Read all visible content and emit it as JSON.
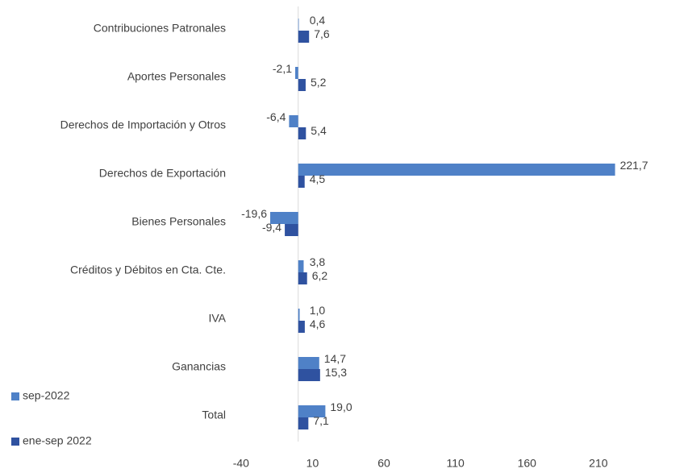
{
  "chart_data": {
    "type": "bar",
    "orientation": "horizontal",
    "categories": [
      "Contribuciones Patronales",
      "Aportes Personales",
      "Derechos de Importación y Otros",
      "Derechos de Exportación",
      "Bienes Personales",
      "Créditos y Débitos en Cta. Cte.",
      "IVA",
      "Ganancias",
      "Total"
    ],
    "series": [
      {
        "name": "sep-2022",
        "color": "#4f81c7",
        "values": [
          0.4,
          -2.1,
          -6.4,
          221.7,
          -19.6,
          3.8,
          1.0,
          14.7,
          19.0
        ],
        "value_labels": [
          "0,4",
          "-2,1",
          "-6,4",
          "221,7",
          "-19,6",
          "3,8",
          "1,0",
          "14,7",
          "19,0"
        ]
      },
      {
        "name": "ene-sep 2022",
        "color": "#2f52a0",
        "values": [
          7.6,
          5.2,
          5.4,
          4.5,
          -9.4,
          6.2,
          4.6,
          15.3,
          7.1
        ],
        "value_labels": [
          "7,6",
          "5,2",
          "5,4",
          "4,5",
          "-9,4",
          "6,2",
          "4,6",
          "15,3",
          "7,1"
        ]
      }
    ],
    "xlim": [
      -45,
      240
    ],
    "xticks": [
      -40,
      10,
      60,
      110,
      160,
      210
    ],
    "legend": "bottom-left"
  }
}
